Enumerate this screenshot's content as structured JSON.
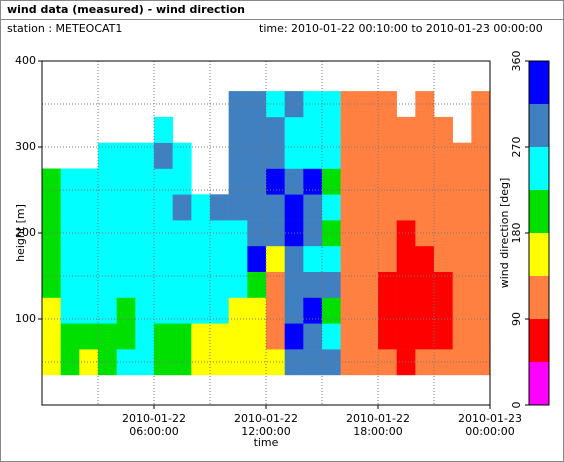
{
  "chart_data": {
    "type": "heatmap",
    "title": "wind data (measured) - wind direction",
    "station": "station : METEOCAT1",
    "time_range": "time: 2010-01-22 00:10:00 to 2010-01-23 00:00:00",
    "xlabel": "time",
    "ylabel": "height [m]",
    "colorbar_label": "wind direction [deg]",
    "xlim": [
      0,
      24
    ],
    "ylim": [
      0,
      400
    ],
    "xticks": [
      {
        "value": 6,
        "label": "2010-01-22 06:00:00"
      },
      {
        "value": 12,
        "label": "2010-01-22 12:00:00"
      },
      {
        "value": 18,
        "label": "2010-01-22 18:00:00"
      },
      {
        "value": 24,
        "label": "2010-01-23 00:00:00"
      }
    ],
    "xminor": [
      3,
      9,
      15,
      21
    ],
    "yticks": [
      100,
      200,
      300,
      400
    ],
    "yminor": [
      50,
      150,
      250,
      350
    ],
    "clim": [
      0,
      360
    ],
    "cticks": [
      0,
      90,
      180,
      270,
      360
    ],
    "colors": [
      "#ff00ff",
      "#ff0000",
      "#ff8040",
      "#ffff00",
      "#00e000",
      "#00ffff",
      "#4080c0",
      "#0000ff"
    ],
    "x": [
      0.5,
      1.5,
      2.5,
      3.5,
      4.5,
      5.5,
      6.5,
      7.5,
      8.5,
      9.5,
      10.5,
      11.5,
      12.5,
      13.5,
      14.5,
      15.5,
      16.5,
      17.5,
      18.5,
      19.5,
      20.5,
      21.5,
      22.5,
      23.5
    ],
    "y": [
      50,
      80,
      110,
      140,
      170,
      200,
      230,
      260,
      290,
      320,
      350
    ],
    "values": [
      [
        160,
        150,
        170,
        200,
        200,
        210,
        200,
        210,
        null,
        null,
        null
      ],
      [
        200,
        210,
        240,
        250,
        240,
        250,
        250,
        240,
        null,
        null,
        null
      ],
      [
        150,
        200,
        250,
        240,
        250,
        260,
        250,
        255,
        null,
        null,
        null
      ],
      [
        210,
        200,
        250,
        250,
        245,
        250,
        255,
        250,
        260,
        null,
        null
      ],
      [
        250,
        200,
        210,
        250,
        250,
        255,
        250,
        250,
        250,
        null,
        null
      ],
      [
        240,
        250,
        250,
        250,
        250,
        240,
        250,
        250,
        260,
        null,
        null
      ],
      [
        200,
        210,
        250,
        250,
        255,
        250,
        245,
        250,
        270,
        250,
        null
      ],
      [
        210,
        200,
        250,
        260,
        250,
        250,
        280,
        250,
        250,
        null,
        null
      ],
      [
        160,
        150,
        250,
        250,
        250,
        255,
        250,
        null,
        null,
        null,
        null
      ],
      [
        170,
        160,
        250,
        250,
        250,
        250,
        280,
        null,
        null,
        null,
        null
      ],
      [
        150,
        160,
        170,
        250,
        250,
        250,
        280,
        280,
        300,
        280,
        280
      ],
      [
        160,
        170,
        160,
        190,
        330,
        300,
        290,
        280,
        290,
        300,
        290
      ],
      [
        160,
        110,
        120,
        130,
        140,
        300,
        290,
        320,
        300,
        290,
        250
      ],
      [
        300,
        330,
        290,
        300,
        300,
        320,
        330,
        300,
        260,
        250,
        290
      ],
      [
        300,
        290,
        330,
        280,
        260,
        290,
        300,
        330,
        250,
        260,
        250
      ],
      [
        280,
        250,
        200,
        300,
        250,
        180,
        250,
        200,
        250,
        250,
        250
      ],
      [
        110,
        120,
        110,
        120,
        110,
        130,
        120,
        110,
        110,
        110,
        110
      ],
      [
        110,
        110,
        120,
        110,
        115,
        110,
        110,
        110,
        115,
        110,
        120
      ],
      [
        110,
        70,
        80,
        75,
        110,
        120,
        110,
        115,
        110,
        120,
        110
      ],
      [
        70,
        60,
        70,
        75,
        80,
        70,
        110,
        110,
        120,
        110,
        null
      ],
      [
        110,
        70,
        60,
        80,
        70,
        110,
        115,
        110,
        110,
        120,
        110
      ],
      [
        110,
        70,
        75,
        70,
        110,
        120,
        110,
        110,
        115,
        110,
        null
      ],
      [
        110,
        115,
        110,
        120,
        110,
        110,
        115,
        120,
        110,
        null,
        null
      ],
      [
        110,
        120,
        110,
        115,
        110,
        110,
        110,
        110,
        115,
        120,
        110
      ]
    ]
  }
}
